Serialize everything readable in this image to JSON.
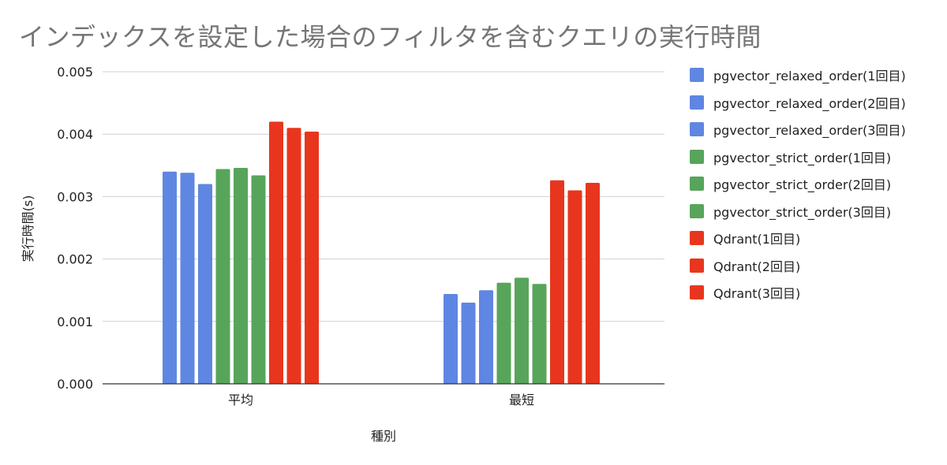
{
  "chart_data": {
    "type": "bar",
    "title": "インデックスを設定した場合のフィルタを含むクエリの実行時間",
    "xlabel": "種別",
    "ylabel": "実行時間(s)",
    "categories": [
      "平均",
      "最短"
    ],
    "ylim": [
      0,
      0.005
    ],
    "yticks": [
      "0.000",
      "0.001",
      "0.002",
      "0.003",
      "0.004",
      "0.005"
    ],
    "grid": true,
    "legend_position": "right",
    "series": [
      {
        "name": "pgvector_relaxed_order(1回目)",
        "color": "#5f86e2",
        "values": [
          0.0034,
          0.00144
        ]
      },
      {
        "name": "pgvector_relaxed_order(2回目)",
        "color": "#5f86e2",
        "values": [
          0.00338,
          0.0013
        ]
      },
      {
        "name": "pgvector_relaxed_order(3回目)",
        "color": "#5f86e2",
        "values": [
          0.0032,
          0.0015
        ]
      },
      {
        "name": "pgvector_strict_order(1回目)",
        "color": "#57a55a",
        "values": [
          0.00344,
          0.00162
        ]
      },
      {
        "name": "pgvector_strict_order(2回目)",
        "color": "#57a55a",
        "values": [
          0.00346,
          0.0017
        ]
      },
      {
        "name": "pgvector_strict_order(3回目)",
        "color": "#57a55a",
        "values": [
          0.00334,
          0.0016
        ]
      },
      {
        "name": "Qdrant(1回目)",
        "color": "#e8361e",
        "values": [
          0.0042,
          0.00326
        ]
      },
      {
        "name": "Qdrant(2回目)",
        "color": "#e8361e",
        "values": [
          0.0041,
          0.0031
        ]
      },
      {
        "name": "Qdrant(3回目)",
        "color": "#e8361e",
        "values": [
          0.00404,
          0.00322
        ]
      }
    ]
  }
}
